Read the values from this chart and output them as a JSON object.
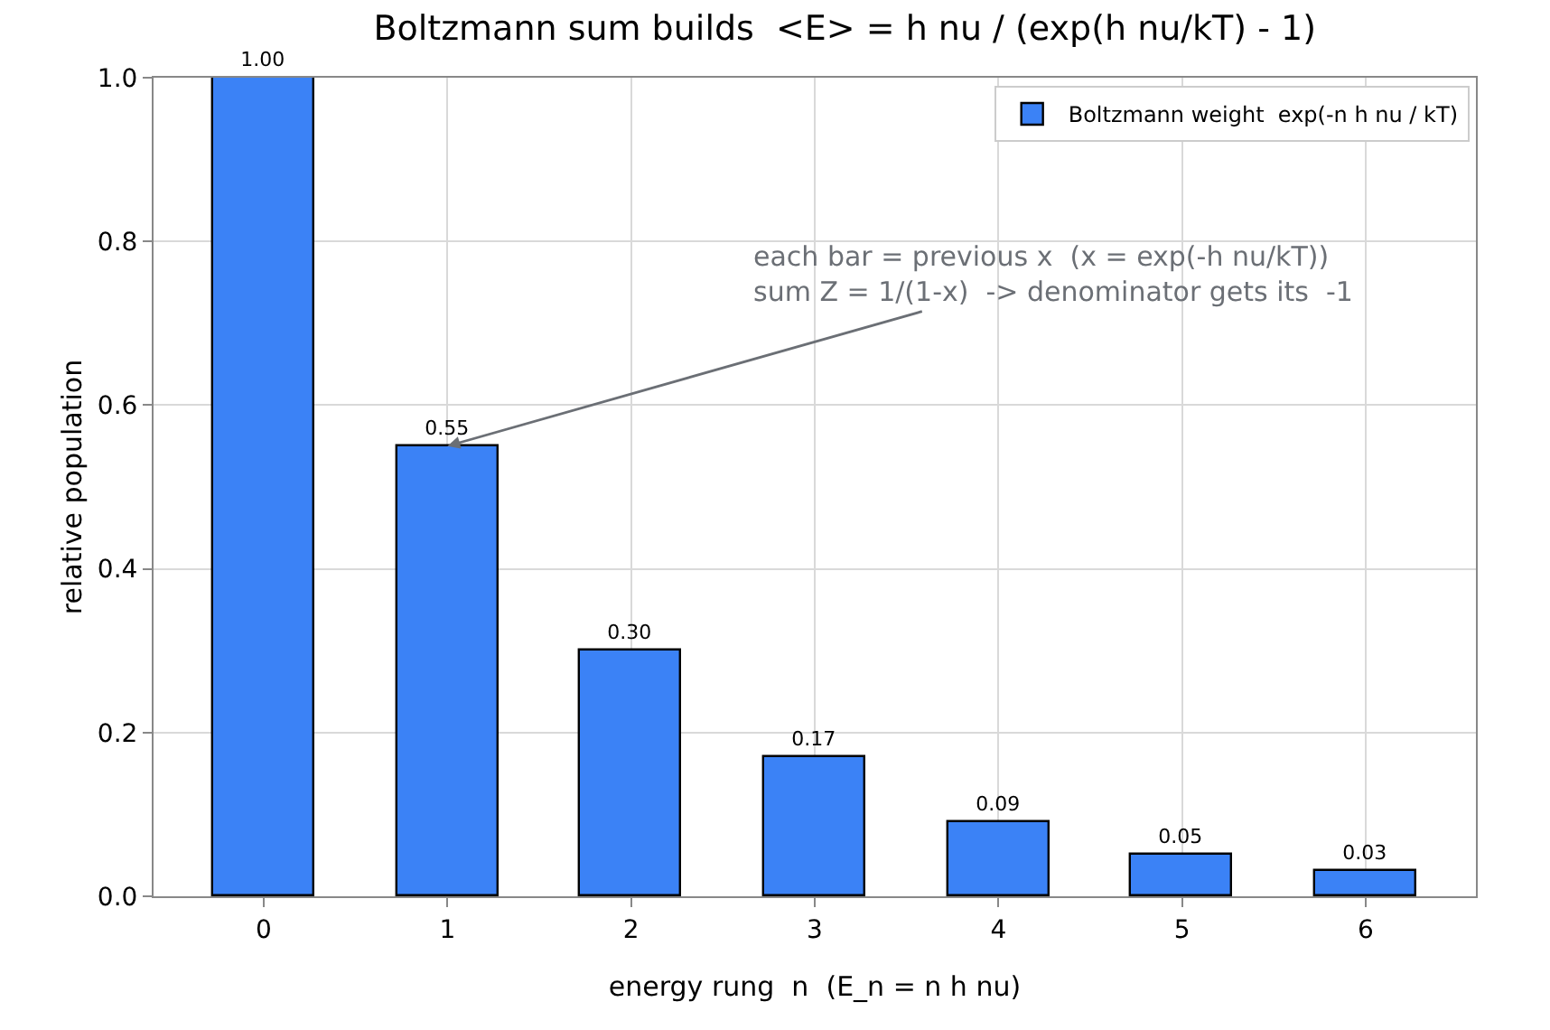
{
  "chart_data": {
    "type": "bar",
    "title": "Boltzmann sum builds  <E> = h nu / (exp(h nu/kT) - 1)",
    "xlabel": "energy rung  n  (E_n = n h nu)",
    "ylabel": "relative population",
    "categories": [
      "0",
      "1",
      "2",
      "3",
      "4",
      "5",
      "6"
    ],
    "series": [
      {
        "name": "Boltzmann weight  exp(-n h nu / kT)",
        "color": "#3b82f6",
        "values": [
          1.0,
          0.55,
          0.3,
          0.17,
          0.09,
          0.05,
          0.03
        ],
        "value_labels": [
          "1.00",
          "0.55",
          "0.30",
          "0.17",
          "0.09",
          "0.05",
          "0.03"
        ]
      }
    ],
    "ylim": [
      0,
      1
    ],
    "yticks": [
      {
        "value": 0,
        "label": "0.0"
      },
      {
        "value": 0.2,
        "label": "0.2"
      },
      {
        "value": 0.4,
        "label": "0.4"
      },
      {
        "value": 0.6,
        "label": "0.6"
      },
      {
        "value": 0.8,
        "label": "0.8"
      },
      {
        "value": 1,
        "label": "1.0"
      }
    ],
    "grid": true,
    "legend": "top right",
    "annotations": [
      {
        "text": "each bar = previous x  (x = exp(-h nu/kT))\nsum Z = 1/(1-x)  -> denominator gets its  -1",
        "x": "1",
        "y": 0.55
      }
    ]
  }
}
